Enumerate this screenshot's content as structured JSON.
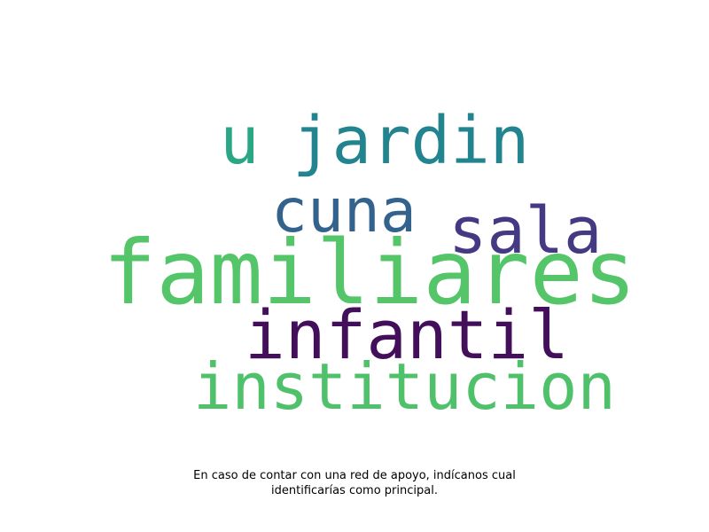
{
  "wordcloud": {
    "words": [
      {
        "text": "u",
        "color": "#29a784"
      },
      {
        "text": "jardin",
        "color": "#22848e"
      },
      {
        "text": "cuna",
        "color": "#33638d"
      },
      {
        "text": "sala",
        "color": "#443983"
      },
      {
        "text": "familiares",
        "color": "#54c568"
      },
      {
        "text": "infantil",
        "color": "#440f5a"
      },
      {
        "text": "institucion",
        "color": "#4fc16a"
      }
    ]
  },
  "caption": {
    "line1": "En caso de contar con una red de apoyo, indícanos cual",
    "line2": "identificarías como principal."
  }
}
